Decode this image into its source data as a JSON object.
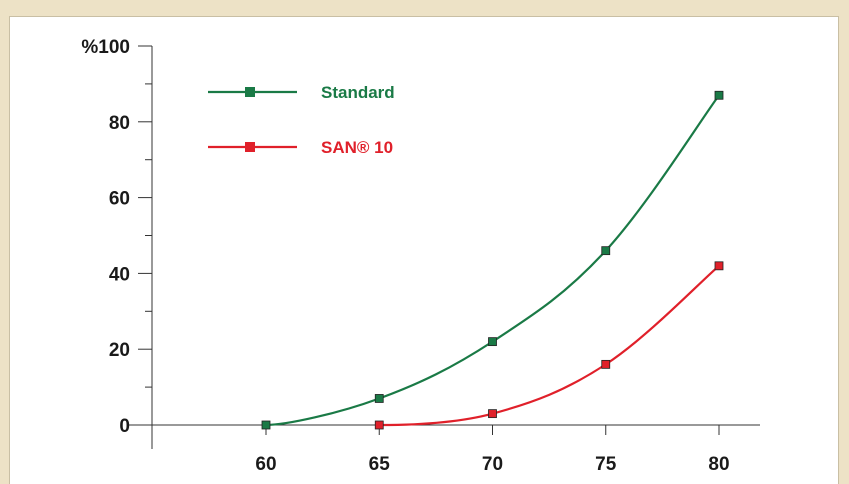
{
  "chart_data": {
    "type": "line",
    "x": [
      60,
      65,
      70,
      75,
      80
    ],
    "xlim": [
      55,
      82
    ],
    "ylim": [
      0,
      100
    ],
    "xticks": [
      "60",
      "65",
      "70",
      "75",
      "80"
    ],
    "yticks": [
      "0",
      "20",
      "40",
      "60",
      "80",
      "%100"
    ],
    "ytick_values": [
      0,
      20,
      40,
      60,
      80,
      100
    ],
    "grid": false,
    "legend_position": "top-left",
    "series": [
      {
        "name": "Standard",
        "color": "#1a7a46",
        "x": [
          60,
          65,
          70,
          75,
          80
        ],
        "values": [
          0,
          7,
          22,
          46,
          87
        ]
      },
      {
        "name": "SAN® 10",
        "color": "#e0202a",
        "x": [
          65,
          70,
          75,
          80
        ],
        "values": [
          0,
          3,
          16,
          42
        ]
      }
    ]
  }
}
